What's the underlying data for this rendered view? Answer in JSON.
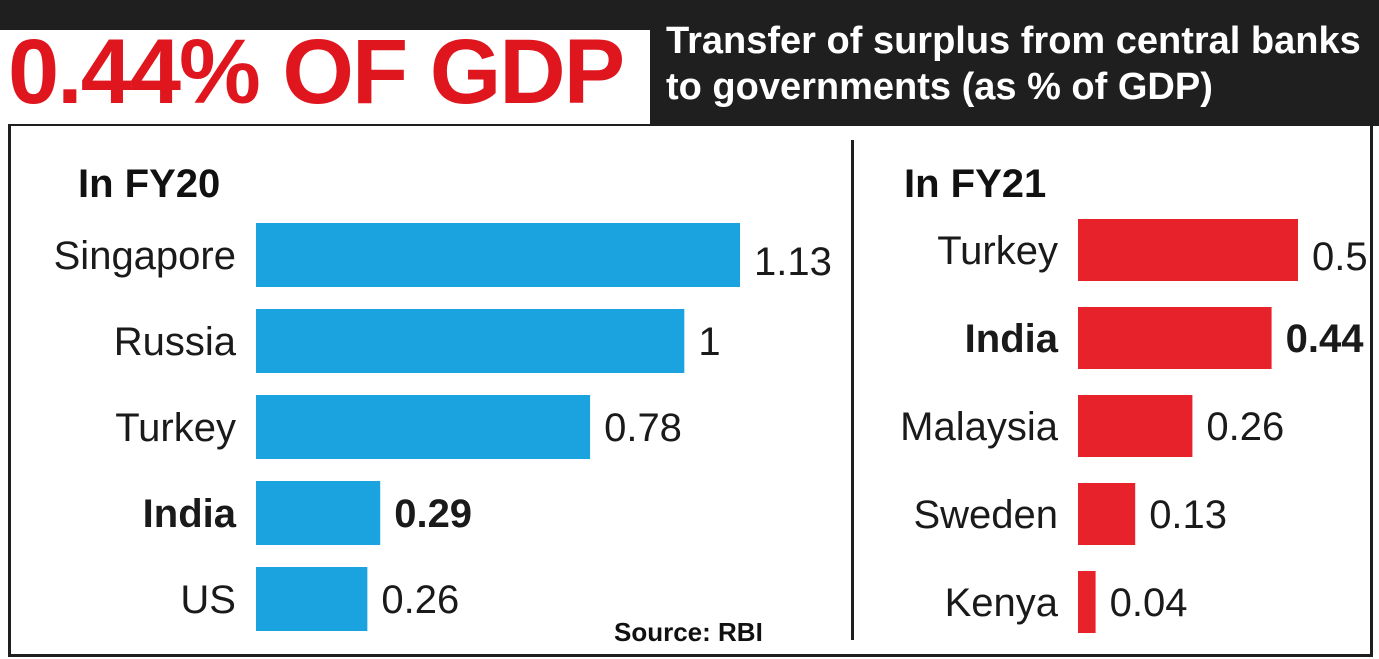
{
  "headline": "0.44% OF GDP",
  "subtitle": "Transfer of surplus from central banks to governments (as % of GDP)",
  "source": "Source: RBI",
  "colors": {
    "fy20_bar": "#1aa3df",
    "fy21_bar": "#e8222b",
    "headline": "#e0161f",
    "header_bg": "#1f1f1f"
  },
  "chart_data": [
    {
      "type": "bar",
      "orientation": "horizontal",
      "title": "In FY20",
      "categories": [
        "Singapore",
        "Russia",
        "Turkey",
        "India",
        "US"
      ],
      "values": [
        1.13,
        1,
        0.78,
        0.29,
        0.26
      ],
      "value_labels": [
        "1.13",
        "1",
        "0.78",
        "0.29",
        "0.26"
      ],
      "highlight": "India",
      "xlim": [
        0,
        1.13
      ],
      "grid": false
    },
    {
      "type": "bar",
      "orientation": "horizontal",
      "title": "In FY21",
      "categories": [
        "Turkey",
        "India",
        "Malaysia",
        "Sweden",
        "Kenya"
      ],
      "values": [
        0.5,
        0.44,
        0.26,
        0.13,
        0.04
      ],
      "value_labels": [
        "0.5",
        "0.44",
        "0.26",
        "0.13",
        "0.04"
      ],
      "highlight": "India",
      "xlim": [
        0,
        0.5
      ],
      "grid": false
    }
  ]
}
